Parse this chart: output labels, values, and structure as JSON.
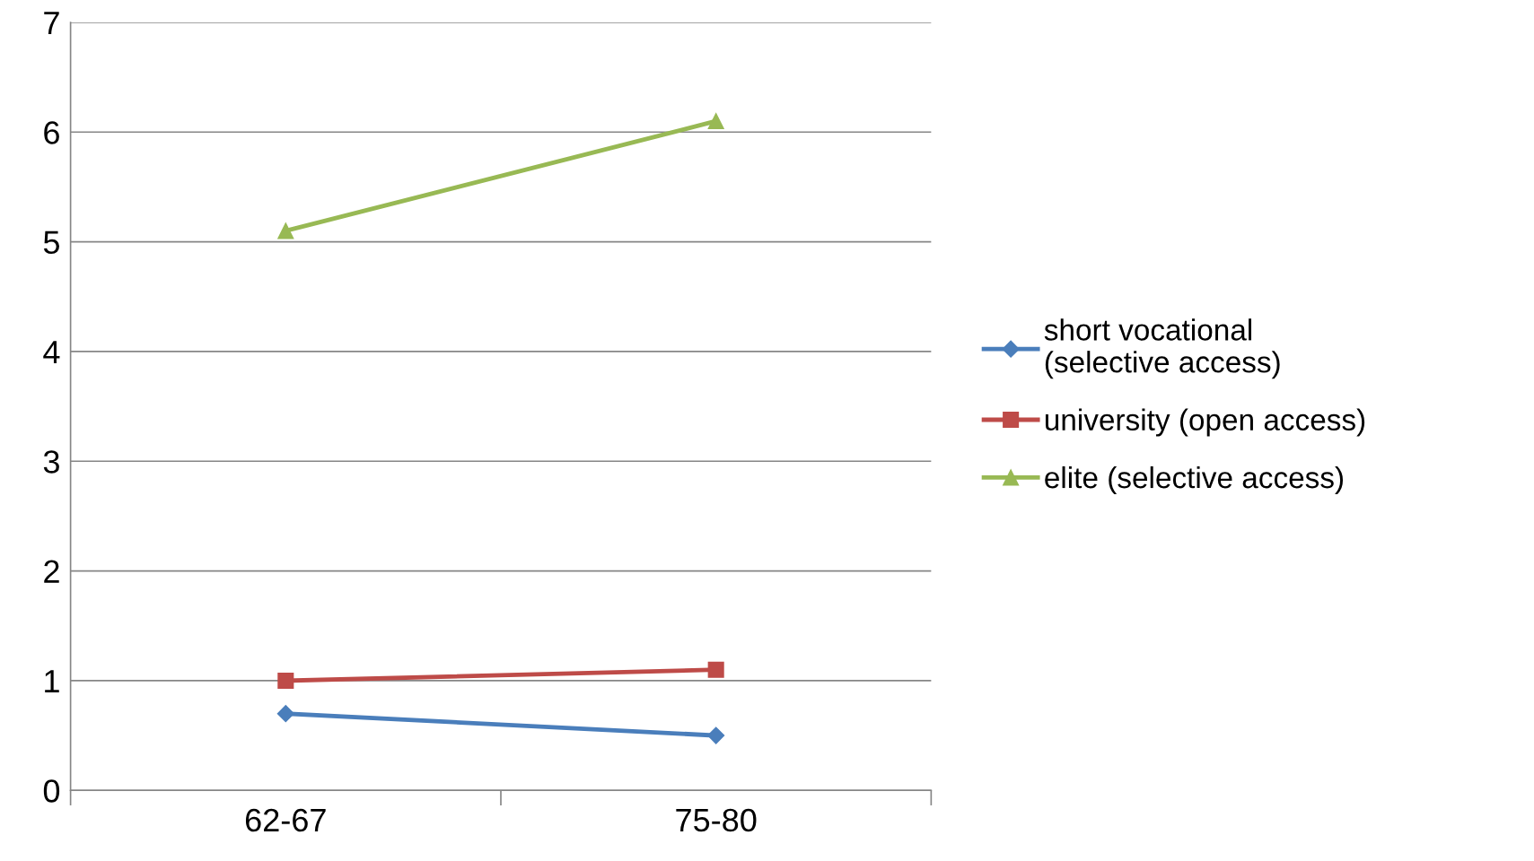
{
  "chart_data": {
    "type": "line",
    "categories": [
      "62-67",
      "75-80"
    ],
    "series": [
      {
        "name": "short vocational (selective access)",
        "color": "#4a7ebb",
        "marker": "diamond",
        "values": [
          0.7,
          0.5
        ]
      },
      {
        "name": "university (open access)",
        "color": "#be4b48",
        "marker": "square",
        "values": [
          1.0,
          1.1
        ]
      },
      {
        "name": "elite (selective access)",
        "color": "#98b954",
        "marker": "triangle",
        "values": [
          5.1,
          6.1
        ]
      }
    ],
    "ylim": [
      0,
      7
    ],
    "yticks": [
      0,
      1,
      2,
      3,
      4,
      5,
      6,
      7
    ],
    "grid": "y",
    "legend": "right",
    "line_style": "solid"
  }
}
